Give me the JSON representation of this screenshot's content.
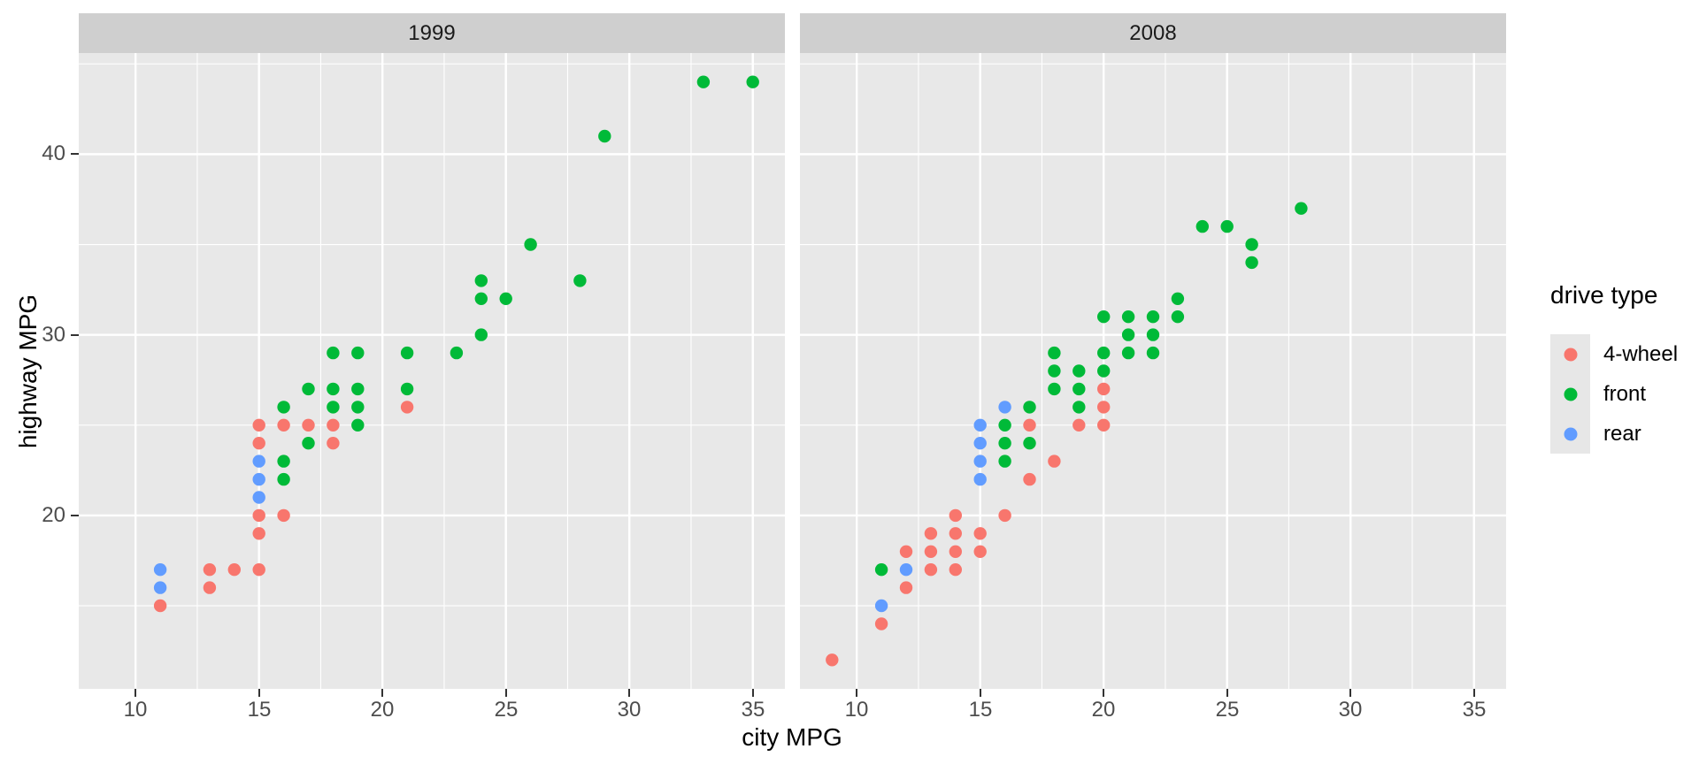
{
  "chart_data": {
    "type": "scatter",
    "xlabel": "city MPG",
    "ylabel": "highway MPG",
    "x_ticks": [
      "10",
      "15",
      "20",
      "25",
      "30",
      "35"
    ],
    "x_tick_values": [
      10,
      15,
      20,
      25,
      30,
      35
    ],
    "x_minor_ticks": [
      12.5,
      17.5,
      22.5,
      27.5,
      32.5
    ],
    "y_ticks": [
      "20",
      "30",
      "40"
    ],
    "y_tick_values": [
      20,
      30,
      40
    ],
    "y_minor_ticks": [
      15,
      25,
      35,
      45
    ],
    "xlim": [
      7.7,
      36.3
    ],
    "ylim": [
      10.4,
      45.6
    ],
    "grid": true,
    "legend_position": "right",
    "legend": {
      "title": "drive type",
      "items": [
        {
          "label": "4-wheel",
          "color": "#F8766D"
        },
        {
          "label": "front",
          "color": "#00BA38"
        },
        {
          "label": "rear",
          "color": "#619CFF"
        }
      ]
    },
    "facets": [
      {
        "label": "1999",
        "series": [
          {
            "name": "4-wheel",
            "color": "#F8766D",
            "points": [
              [
                11,
                15
              ],
              [
                13,
                16
              ],
              [
                13,
                17
              ],
              [
                14,
                17
              ],
              [
                15,
                17
              ],
              [
                15,
                19
              ],
              [
                15,
                20
              ],
              [
                16,
                20
              ],
              [
                15,
                24
              ],
              [
                18,
                24
              ],
              [
                15,
                25
              ],
              [
                16,
                25
              ],
              [
                17,
                25
              ],
              [
                18,
                25
              ],
              [
                21,
                26
              ]
            ]
          },
          {
            "name": "front",
            "color": "#00BA38",
            "points": [
              [
                16,
                22
              ],
              [
                16,
                23
              ],
              [
                17,
                24
              ],
              [
                19,
                25
              ],
              [
                16,
                26
              ],
              [
                18,
                26
              ],
              [
                19,
                26
              ],
              [
                17,
                27
              ],
              [
                18,
                27
              ],
              [
                19,
                27
              ],
              [
                21,
                27
              ],
              [
                18,
                29
              ],
              [
                19,
                29
              ],
              [
                21,
                29
              ],
              [
                23,
                29
              ],
              [
                24,
                30
              ],
              [
                24,
                32
              ],
              [
                25,
                32
              ],
              [
                24,
                33
              ],
              [
                28,
                33
              ],
              [
                26,
                35
              ],
              [
                29,
                41
              ],
              [
                33,
                44
              ],
              [
                35,
                44
              ]
            ]
          },
          {
            "name": "rear",
            "color": "#619CFF",
            "points": [
              [
                11,
                16
              ],
              [
                11,
                17
              ],
              [
                15,
                21
              ],
              [
                15,
                22
              ],
              [
                15,
                23
              ]
            ]
          }
        ]
      },
      {
        "label": "2008",
        "series": [
          {
            "name": "4-wheel",
            "color": "#F8766D",
            "points": [
              [
                9,
                12
              ],
              [
                11,
                14
              ],
              [
                12,
                16
              ],
              [
                13,
                17
              ],
              [
                14,
                17
              ],
              [
                12,
                18
              ],
              [
                13,
                18
              ],
              [
                14,
                18
              ],
              [
                15,
                18
              ],
              [
                13,
                19
              ],
              [
                14,
                19
              ],
              [
                15,
                19
              ],
              [
                14,
                20
              ],
              [
                16,
                20
              ],
              [
                17,
                22
              ],
              [
                18,
                23
              ],
              [
                17,
                25
              ],
              [
                19,
                25
              ],
              [
                20,
                25
              ],
              [
                20,
                26
              ],
              [
                20,
                27
              ]
            ]
          },
          {
            "name": "front",
            "color": "#00BA38",
            "points": [
              [
                11,
                17
              ],
              [
                16,
                23
              ],
              [
                16,
                24
              ],
              [
                17,
                24
              ],
              [
                16,
                25
              ],
              [
                17,
                26
              ],
              [
                19,
                26
              ],
              [
                18,
                27
              ],
              [
                19,
                27
              ],
              [
                18,
                28
              ],
              [
                19,
                28
              ],
              [
                20,
                28
              ],
              [
                18,
                29
              ],
              [
                20,
                29
              ],
              [
                21,
                29
              ],
              [
                22,
                29
              ],
              [
                21,
                30
              ],
              [
                22,
                30
              ],
              [
                20,
                31
              ],
              [
                21,
                31
              ],
              [
                22,
                31
              ],
              [
                23,
                31
              ],
              [
                23,
                32
              ],
              [
                26,
                34
              ],
              [
                26,
                35
              ],
              [
                24,
                36
              ],
              [
                25,
                36
              ],
              [
                28,
                37
              ]
            ]
          },
          {
            "name": "rear",
            "color": "#619CFF",
            "points": [
              [
                11,
                15
              ],
              [
                12,
                17
              ],
              [
                15,
                22
              ],
              [
                15,
                23
              ],
              [
                15,
                24
              ],
              [
                15,
                25
              ],
              [
                16,
                26
              ]
            ]
          }
        ]
      }
    ]
  },
  "colors": {
    "background": "#FFFFFF",
    "panel_bg": "#E8E8E8",
    "strip_bg": "#CFCFCF",
    "grid_line": "#FFFFFF",
    "tick_label": "#4D4D4D",
    "tick_mark": "#333333",
    "strip_text": "#1A1A1A",
    "axis_title": "#000000",
    "legend_key_bg": "#E7E7E7"
  }
}
